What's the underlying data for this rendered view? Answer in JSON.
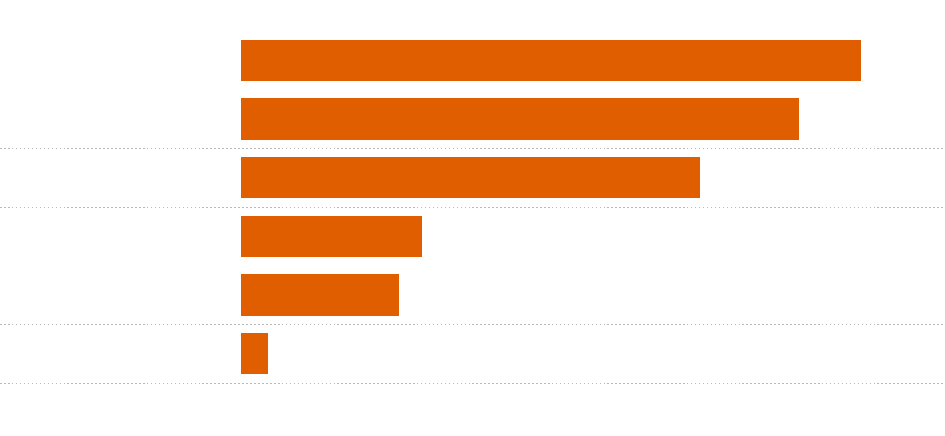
{
  "chart_data": {
    "type": "barh",
    "categories": [
      null,
      null,
      null,
      null,
      null,
      null,
      null
    ],
    "values": [
      781,
      703,
      579,
      228,
      199,
      34,
      1
    ],
    "color": "#e05e00",
    "xlim": [
      0,
      800
    ]
  }
}
